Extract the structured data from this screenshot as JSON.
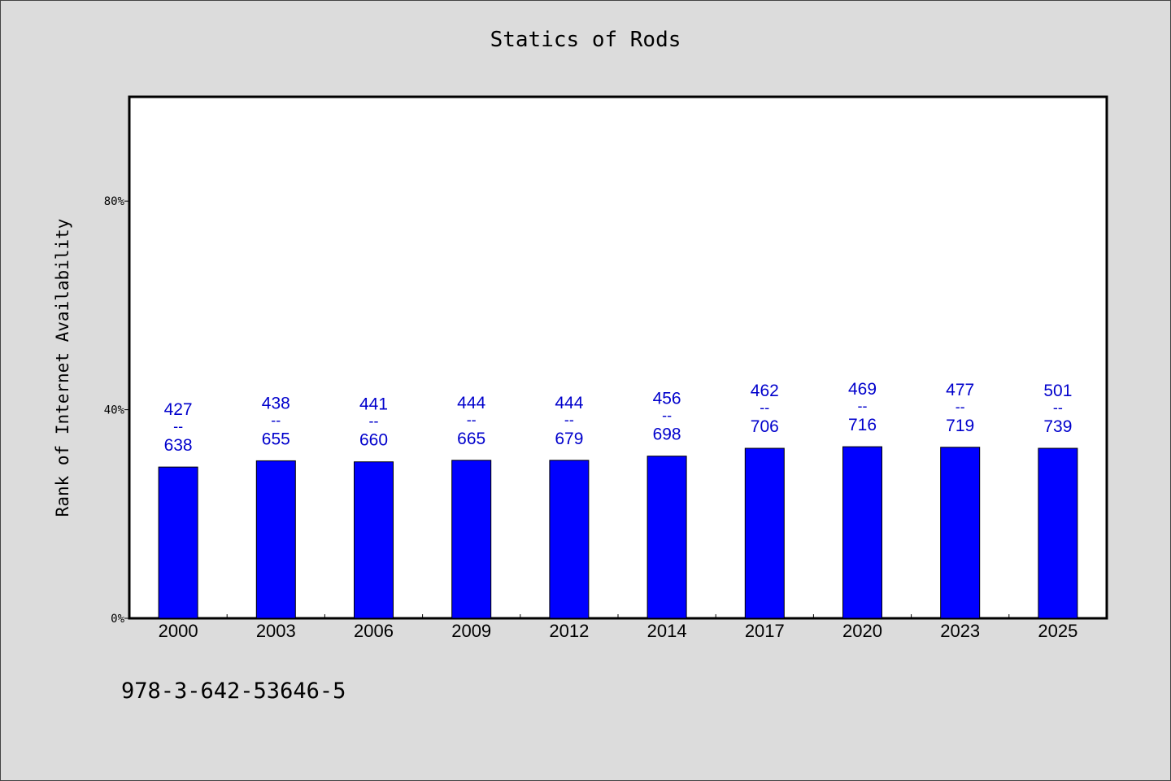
{
  "chart_data": {
    "type": "bar",
    "title": "Statics of Rods",
    "ylabel": "Rank of Internet Availability",
    "xlabel": "",
    "ylim": [
      0,
      100
    ],
    "y_ticks": [
      {
        "value": 0,
        "label": "0%"
      },
      {
        "value": 40,
        "label": "40%"
      },
      {
        "value": 80,
        "label": "80%"
      }
    ],
    "categories": [
      "2000",
      "2003",
      "2006",
      "2009",
      "2012",
      "2014",
      "2017",
      "2020",
      "2023",
      "2025"
    ],
    "values": [
      29.0,
      30.2,
      30.0,
      30.3,
      30.3,
      31.1,
      32.6,
      32.9,
      32.8,
      32.6
    ],
    "bar_labels": [
      {
        "top": "427",
        "sep": "--",
        "bottom": "638"
      },
      {
        "top": "438",
        "sep": "--",
        "bottom": "655"
      },
      {
        "top": "441",
        "sep": "--",
        "bottom": "660"
      },
      {
        "top": "444",
        "sep": "--",
        "bottom": "665"
      },
      {
        "top": "444",
        "sep": "--",
        "bottom": "679"
      },
      {
        "top": "456",
        "sep": "--",
        "bottom": "698"
      },
      {
        "top": "462",
        "sep": "--",
        "bottom": "706"
      },
      {
        "top": "469",
        "sep": "--",
        "bottom": "716"
      },
      {
        "top": "477",
        "sep": "--",
        "bottom": "719"
      },
      {
        "top": "501",
        "sep": "--",
        "bottom": "739"
      }
    ],
    "grid": false,
    "bar_color": "#0000ff",
    "label_color": "#0000cc"
  },
  "footer": {
    "identifier": "978-3-642-53646-5"
  }
}
